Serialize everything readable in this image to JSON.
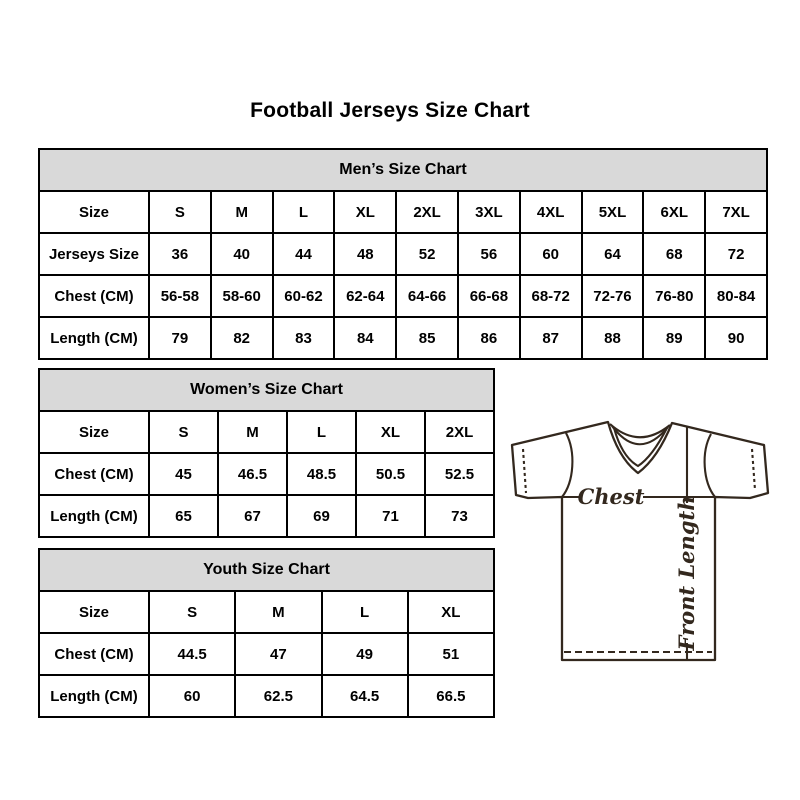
{
  "page": {
    "title": "Football Jerseys Size Chart"
  },
  "tables": {
    "men": {
      "header": "Men’s Size Chart",
      "rows": [
        {
          "label": "Size",
          "values": [
            "S",
            "M",
            "L",
            "XL",
            "2XL",
            "3XL",
            "4XL",
            "5XL",
            "6XL",
            "7XL"
          ]
        },
        {
          "label": "Jerseys Size",
          "values": [
            "36",
            "40",
            "44",
            "48",
            "52",
            "56",
            "60",
            "64",
            "68",
            "72"
          ]
        },
        {
          "label": "Chest (CM)",
          "values": [
            "56-58",
            "58-60",
            "60-62",
            "62-64",
            "64-66",
            "66-68",
            "68-72",
            "72-76",
            "76-80",
            "80-84"
          ]
        },
        {
          "label": "Length (CM)",
          "values": [
            "79",
            "82",
            "83",
            "84",
            "85",
            "86",
            "87",
            "88",
            "89",
            "90"
          ]
        }
      ]
    },
    "women": {
      "header": "Women’s Size Chart",
      "rows": [
        {
          "label": "Size",
          "values": [
            "S",
            "M",
            "L",
            "XL",
            "2XL"
          ]
        },
        {
          "label": "Chest (CM)",
          "values": [
            "45",
            "46.5",
            "48.5",
            "50.5",
            "52.5"
          ]
        },
        {
          "label": "Length (CM)",
          "values": [
            "65",
            "67",
            "69",
            "71",
            "73"
          ]
        }
      ]
    },
    "youth": {
      "header": "Youth Size Chart",
      "rows": [
        {
          "label": "Size",
          "values": [
            "S",
            "M",
            "L",
            "XL"
          ]
        },
        {
          "label": "Chest (CM)",
          "values": [
            "44.5",
            "47",
            "49",
            "51"
          ]
        },
        {
          "label": "Length (CM)",
          "values": [
            "60",
            "62.5",
            "64.5",
            "66.5"
          ]
        }
      ]
    }
  },
  "diagram": {
    "chest_label": "Chest",
    "front_length_label": "Front Length"
  },
  "colors": {
    "table_header_bg": "#d9d9d9",
    "table_border": "#000000",
    "text": "#000000",
    "diagram_line": "#33281e"
  }
}
